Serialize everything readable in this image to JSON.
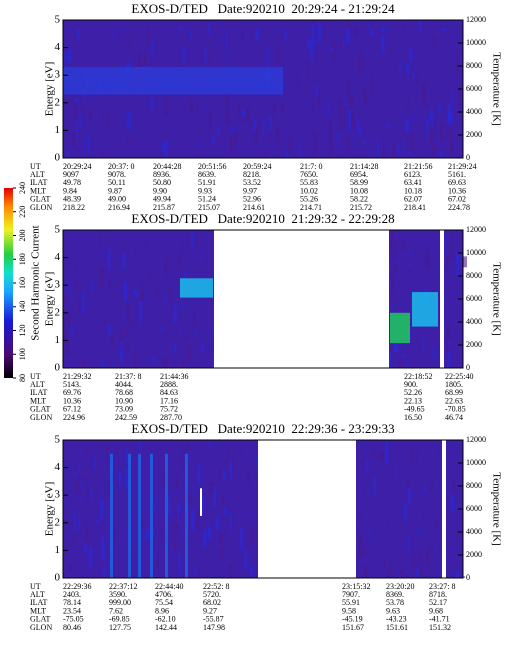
{
  "colorbar": {
    "label": "Second Harmonic Current",
    "ticks": [
      80,
      100,
      120,
      140,
      160,
      180,
      200,
      220,
      240
    ]
  },
  "panels": [
    {
      "title": "EXOS-D/TED   Date:920210  20:29:24 - 21:29:24",
      "y_label": "Energy [eV]",
      "y_range": [
        0,
        5
      ],
      "y_ticks": [
        0,
        1,
        2,
        3,
        4,
        5
      ],
      "y2_label": "Temperature [K]",
      "y2_range": [
        0,
        12000
      ],
      "y2_ticks": [
        0,
        2000,
        4000,
        6000,
        8000,
        10000,
        12000
      ],
      "table": {
        "rows": [
          {
            "label": "UT",
            "cells": [
              "20:29:24",
              "20:37: 0",
              "20:44:28",
              "20:51:56",
              "20:59:24",
              "21:7: 0",
              "21:14:28",
              "21:21:56",
              "21:29:24"
            ]
          },
          {
            "label": "ALT",
            "cells": [
              "9097",
              "9078.",
              "8936.",
              "8639.",
              "8218.",
              "7650.",
              "6954.",
              "6123.",
              "5161."
            ]
          },
          {
            "label": "ILAT",
            "cells": [
              "49.78",
              "50.11",
              "50.80",
              "51.91",
              "53.52",
              "55.83",
              "58.99",
              "63.41",
              "69.63"
            ]
          },
          {
            "label": "MLT",
            "cells": [
              "9.84",
              "9.87",
              "9.90",
              "9.93",
              "9.97",
              "10.02",
              "10.08",
              "10.18",
              "10.36"
            ]
          },
          {
            "label": "GLAT",
            "cells": [
              "48.39",
              "49.00",
              "49.94",
              "51.24",
              "52.96",
              "55.26",
              "58.22",
              "62.07",
              "67.02"
            ]
          },
          {
            "label": "GLON",
            "cells": [
              "218.22",
              "216.94",
              "215.87",
              "215.07",
              "214.61",
              "214.71",
              "215.72",
              "218.41",
              "224.78"
            ]
          }
        ]
      }
    },
    {
      "title": "EXOS-D/TED   Date:920210  21:29:32 - 22:29:28",
      "y_label": "Energy [eV]",
      "y_range": [
        0,
        5
      ],
      "y_ticks": [
        0,
        1,
        2,
        3,
        4,
        5
      ],
      "y2_label": "Temperature [K]",
      "y2_range": [
        0,
        12000
      ],
      "y2_ticks": [
        0,
        2000,
        4000,
        6000,
        8000,
        10000,
        12000
      ],
      "table": {
        "rows": [
          {
            "label": "UT",
            "cells": [
              "21:29:32",
              "21:37: 8",
              "21:44:36",
              "22:18:52",
              "22:25:40"
            ]
          },
          {
            "label": "ALT",
            "cells": [
              "5143.",
              "4044.",
              "2888.",
              "900.",
              "1805."
            ]
          },
          {
            "label": "ILAT",
            "cells": [
              "69.76",
              "78.68",
              "84.63",
              "52.26",
              "68.99"
            ]
          },
          {
            "label": "MLT",
            "cells": [
              "10.36",
              "10.90",
              "17.16",
              "22.13",
              "22.63"
            ]
          },
          {
            "label": "GLAT",
            "cells": [
              "67.12",
              "73.09",
              "75.72",
              "-49.65",
              "-70.85"
            ]
          },
          {
            "label": "GLON",
            "cells": [
              "224.96",
              "242.59",
              "287.70",
              "16.50",
              "46.74"
            ]
          }
        ]
      }
    },
    {
      "title": "EXOS-D/TED   Date:920210  22:29:36 - 23:29:33",
      "y_label": "Energy [eV]",
      "y_range": [
        0,
        5
      ],
      "y_ticks": [
        0,
        1,
        2,
        3,
        4,
        5
      ],
      "y2_label": "Temperature [K]",
      "y2_range": [
        0,
        12000
      ],
      "y2_ticks": [
        0,
        2000,
        4000,
        6000,
        8000,
        10000,
        12000
      ],
      "table": {
        "rows": [
          {
            "label": "UT",
            "cells": [
              "22:29:36",
              "22:37:12",
              "22:44:40",
              "22:52: 8",
              "23:15:32",
              "23:20:20",
              "23:27: 8"
            ]
          },
          {
            "label": "ALT",
            "cells": [
              "2403.",
              "3590.",
              "4706.",
              "5720.",
              "7907.",
              "8369.",
              "8718."
            ]
          },
          {
            "label": "ILAT",
            "cells": [
              "78.14",
              "999.00",
              "75.54",
              "68.02",
              "55.91",
              "53.78",
              "52.17"
            ]
          },
          {
            "label": "MLT",
            "cells": [
              "23.54",
              "7.62",
              "8.96",
              "9.27",
              "9.58",
              "9.63",
              "9.68"
            ]
          },
          {
            "label": "GLAT",
            "cells": [
              "-75.05",
              "-69.85",
              "-62.10",
              "-55.87",
              "-45.19",
              "-43.23",
              "-41.71"
            ]
          },
          {
            "label": "GLON",
            "cells": [
              "80.46",
              "127.75",
              "142.44",
              "147.98",
              "151.67",
              "151.61",
              "151.32"
            ]
          }
        ]
      }
    }
  ]
}
